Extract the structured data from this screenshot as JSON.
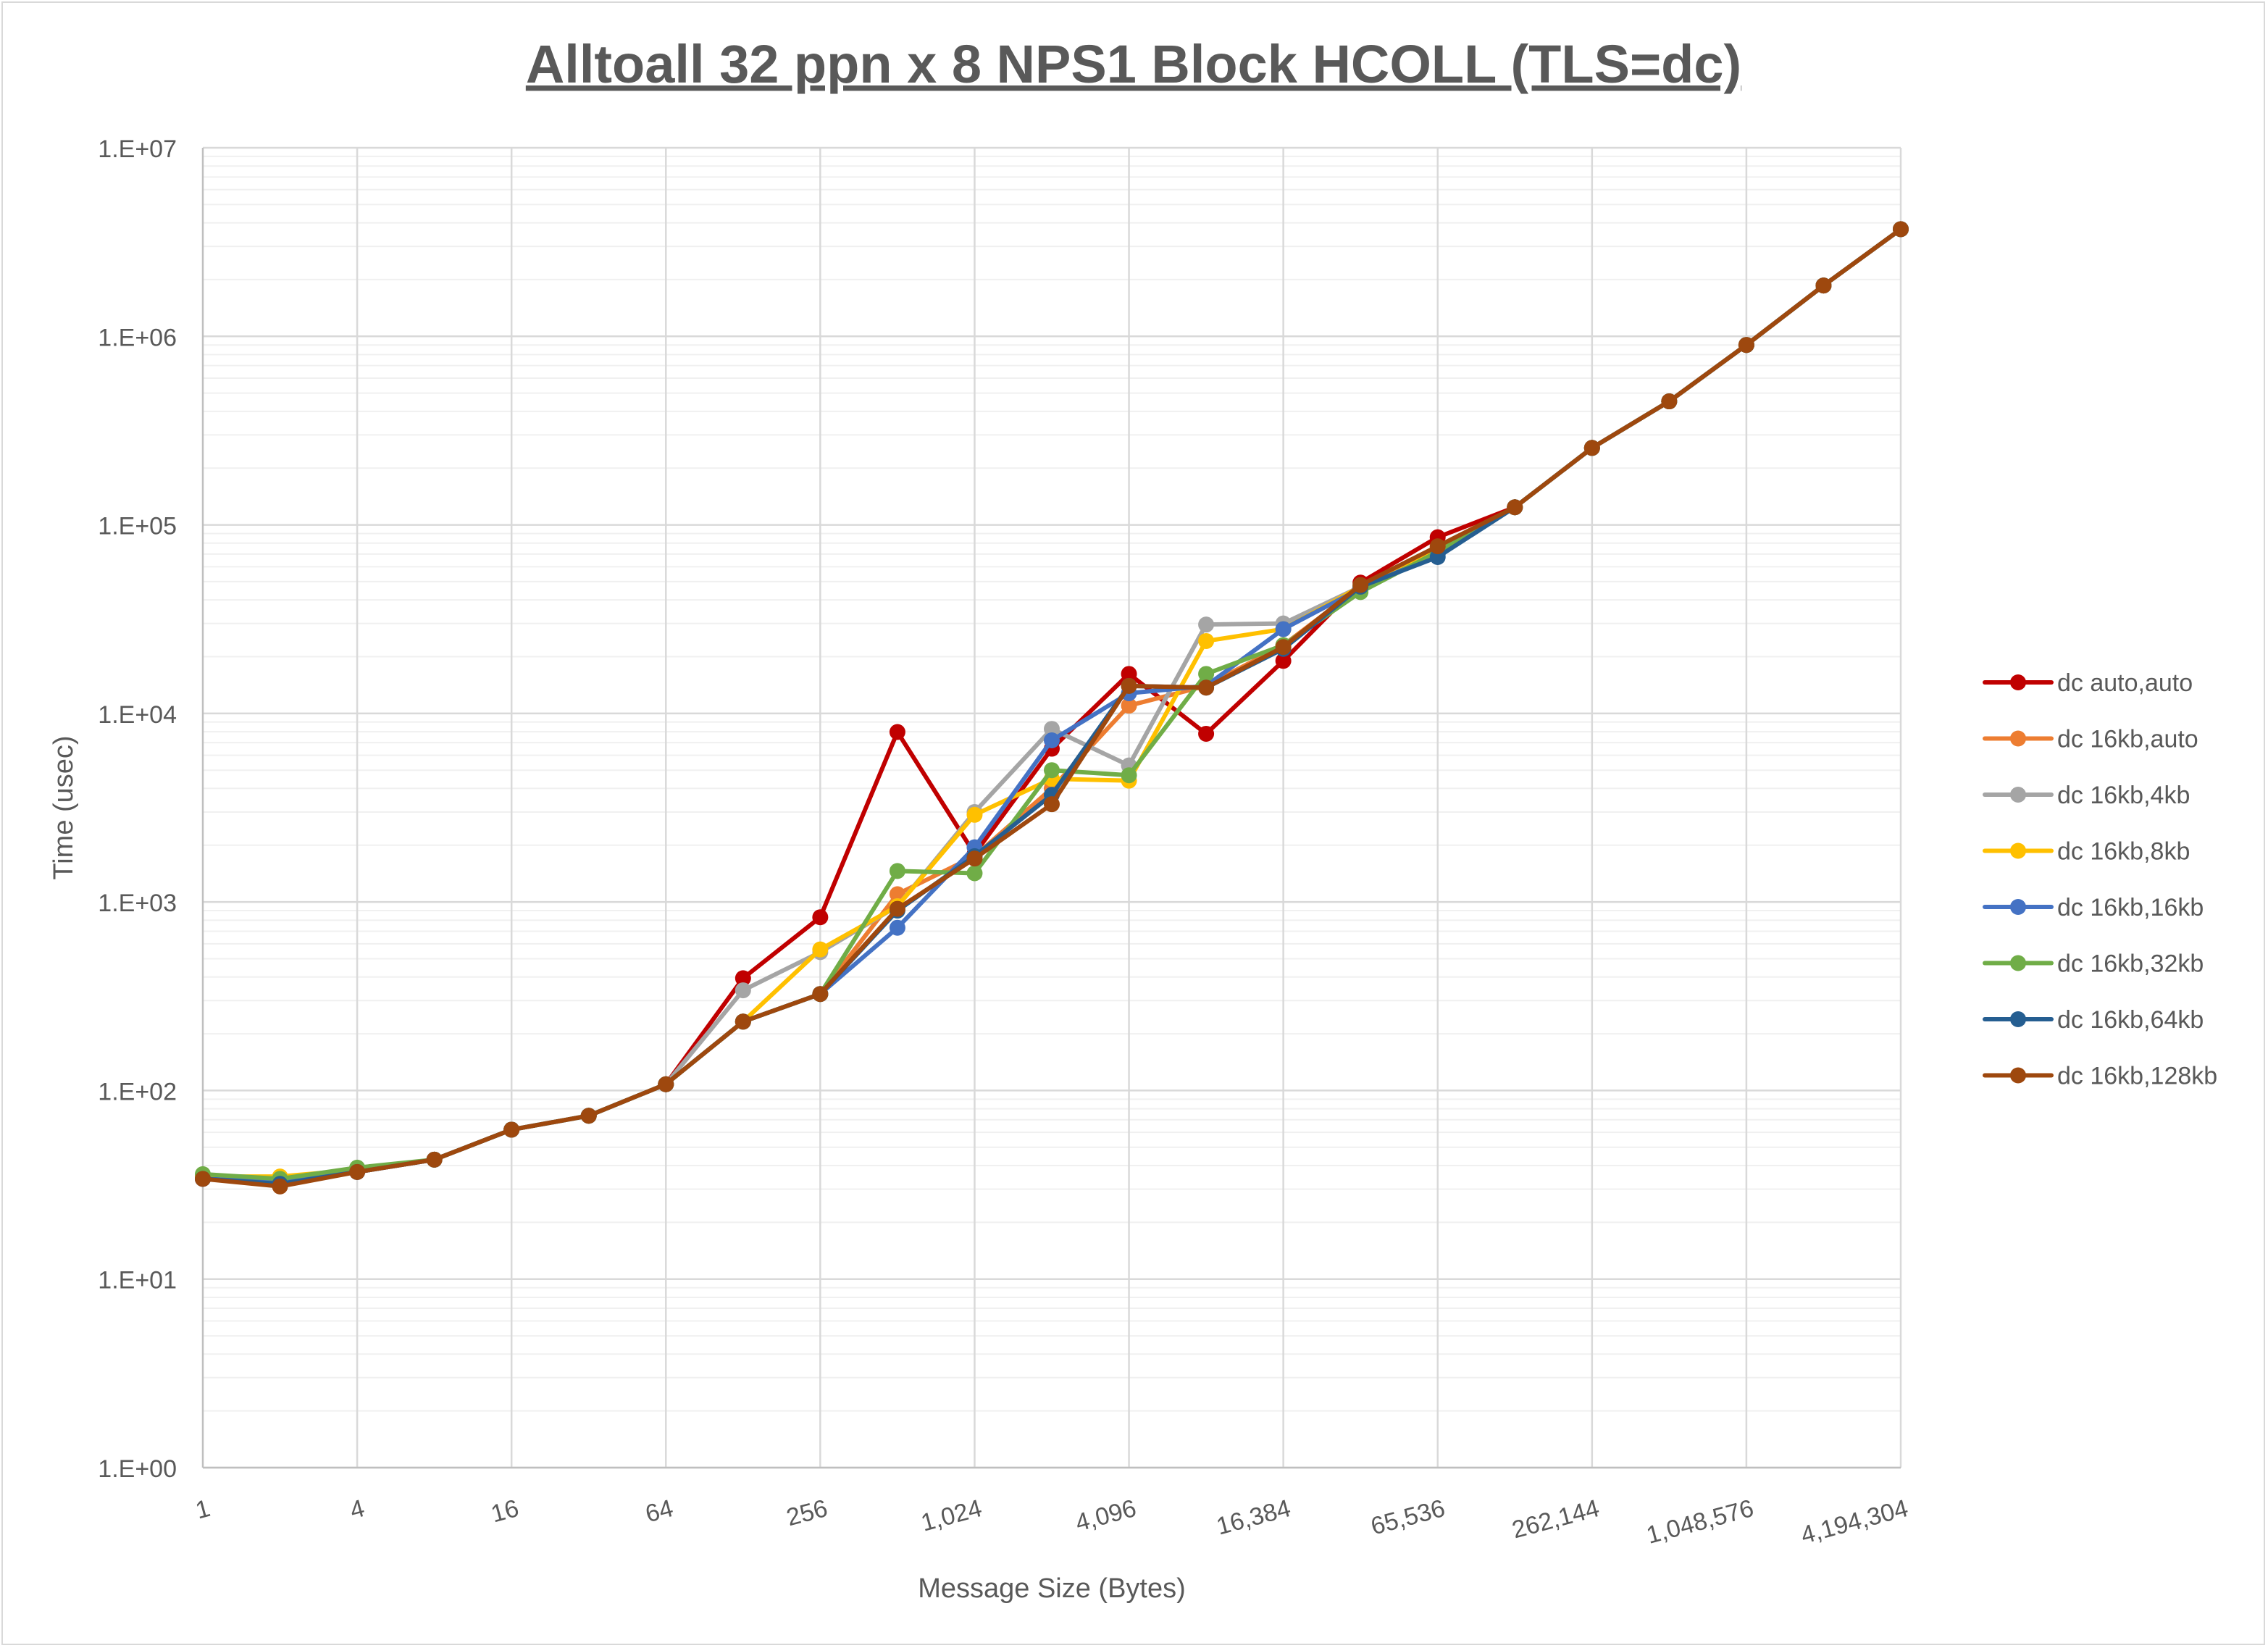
{
  "chart_data": {
    "type": "line",
    "title": "Alltoall 32 ppn x 8 NPS1 Block HCOLL (TLS=dc)",
    "xlabel": "Message Size (Bytes)",
    "ylabel": "Time (usec)",
    "xscale": "log2",
    "yscale": "log10",
    "ylim": [
      1,
      10000000
    ],
    "y_tick_labels": [
      "1.E+00",
      "1.E+01",
      "1.E+02",
      "1.E+03",
      "1.E+04",
      "1.E+05",
      "1.E+06",
      "1.E+07"
    ],
    "x_tick_labels": [
      "1",
      "4",
      "16",
      "64",
      "256",
      "1,024",
      "4,096",
      "16,384",
      "65,536",
      "262,144",
      "1,048,576",
      "4,194,304"
    ],
    "x": [
      1,
      2,
      4,
      8,
      16,
      32,
      64,
      128,
      256,
      512,
      1024,
      2048,
      4096,
      8192,
      16384,
      32768,
      65536,
      131072,
      262144,
      524288,
      1048576,
      2097152,
      4194304
    ],
    "grid": true,
    "legend_position": "right",
    "series": [
      {
        "name": "dc auto,auto",
        "color": "#C00000",
        "values": [
          34,
          33,
          37,
          43,
          62,
          73.5,
          108,
          394,
          830,
          7970,
          1800,
          6500,
          16200,
          7800,
          19000,
          49400,
          86000,
          124000,
          256000,
          452000,
          900000,
          1860000,
          3700000
        ]
      },
      {
        "name": "dc 16kb,auto",
        "color": "#ED7D31",
        "values": [
          34,
          33,
          37,
          43,
          62,
          73.5,
          108,
          232,
          325,
          1100,
          1750,
          4000,
          11000,
          14000,
          23000,
          47000,
          75000,
          124000,
          256000,
          452000,
          900000,
          1860000,
          3700000
        ]
      },
      {
        "name": "dc 16kb,4kb",
        "color": "#A5A5A5",
        "values": [
          34,
          33,
          37,
          43,
          62,
          73.5,
          108,
          340,
          542,
          950,
          3000,
          8280,
          5300,
          29600,
          30000,
          47000,
          73000,
          124000,
          256000,
          452000,
          900000,
          1860000,
          3700000
        ]
      },
      {
        "name": "dc 16kb,8kb",
        "color": "#FFC000",
        "values": [
          35,
          35,
          38,
          43,
          62,
          73.5,
          108,
          232,
          560,
          950,
          2900,
          4500,
          4400,
          24200,
          28000,
          47000,
          73000,
          124000,
          256000,
          452000,
          900000,
          1860000,
          3700000
        ]
      },
      {
        "name": "dc 16kb,16kb",
        "color": "#4472C4",
        "values": [
          34,
          33,
          37,
          43,
          62,
          73.5,
          108,
          232,
          325,
          730,
          1950,
          7200,
          12800,
          14000,
          28000,
          46000,
          70000,
          124000,
          256000,
          452000,
          900000,
          1860000,
          3700000
        ]
      },
      {
        "name": "dc 16kb,32kb",
        "color": "#70AD47",
        "values": [
          36,
          34,
          39,
          43,
          62,
          73.5,
          108,
          232,
          325,
          1460,
          1420,
          5000,
          4700,
          16200,
          23000,
          44000,
          72000,
          124000,
          256000,
          452000,
          900000,
          1860000,
          3700000
        ]
      },
      {
        "name": "dc 16kb,64kb",
        "color": "#255E91",
        "values": [
          34,
          32,
          37,
          43,
          62,
          73.5,
          108,
          232,
          325,
          900,
          1750,
          3700,
          14000,
          13700,
          22000,
          47000,
          67500,
          124000,
          256000,
          452000,
          900000,
          1860000,
          3700000
        ]
      },
      {
        "name": "dc 16kb,128kb",
        "color": "#9E480E",
        "values": [
          34,
          31,
          37,
          43,
          62,
          73.5,
          108,
          232,
          325,
          920,
          1700,
          3300,
          14000,
          13700,
          22500,
          48000,
          77000,
          124000,
          256000,
          452000,
          900000,
          1860000,
          3700000
        ]
      }
    ]
  }
}
